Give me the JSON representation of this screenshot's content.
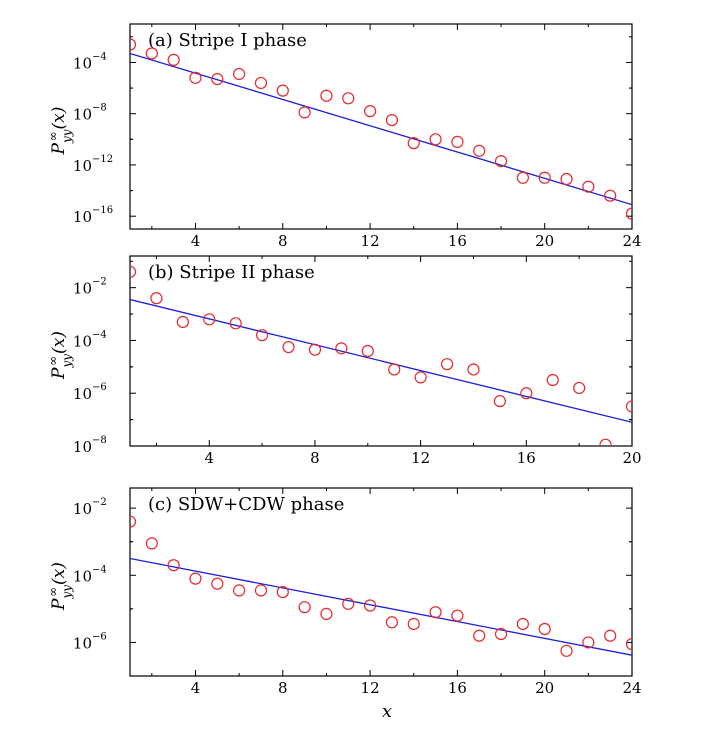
{
  "chart_data": [
    {
      "type": "scatter",
      "title": "(a) Stripe I phase",
      "ylabel": "P_yy^∞(x)",
      "xlabel": "",
      "yscale": "log",
      "xlim": [
        1,
        24
      ],
      "ylim_exp": [
        -17,
        -1
      ],
      "x_ticks": [
        4,
        8,
        12,
        16,
        20,
        24
      ],
      "y_tick_exps": [
        -4,
        -8,
        -12,
        -16
      ],
      "series": [
        {
          "marker": "open-circle",
          "color": "#e8262b",
          "x": [
            1,
            2,
            3,
            4,
            5,
            6,
            7,
            8,
            9,
            10,
            11,
            12,
            13,
            14,
            15,
            16,
            17,
            18,
            19,
            20,
            21,
            22,
            23,
            24
          ],
          "log10_y": [
            -2.6,
            -3.3,
            -3.8,
            -5.2,
            -5.3,
            -4.9,
            -5.6,
            -6.2,
            -7.9,
            -6.6,
            -6.8,
            -7.8,
            -8.5,
            -10.3,
            -10.0,
            -10.2,
            -10.9,
            -11.7,
            -13.0,
            -13.0,
            -13.1,
            -13.7,
            -14.4,
            -15.8
          ]
        }
      ],
      "fit_line": {
        "color": "#1f1fd6",
        "x": [
          1,
          24
        ],
        "log10_y": [
          -3.3,
          -15.1
        ]
      }
    },
    {
      "type": "scatter",
      "title": "(b) Stripe II phase",
      "ylabel": "P_yy^∞(x)",
      "xlabel": "",
      "yscale": "log",
      "xlim": [
        1,
        20
      ],
      "ylim_exp": [
        -8,
        -0.8
      ],
      "x_ticks": [
        4,
        8,
        12,
        16,
        20
      ],
      "y_tick_exps": [
        -2,
        -4,
        -6,
        -8
      ],
      "series": [
        {
          "marker": "open-circle",
          "color": "#e8262b",
          "x": [
            1,
            2,
            3,
            4,
            5,
            6,
            7,
            8,
            9,
            10,
            11,
            12,
            13,
            14,
            15,
            16,
            17,
            18,
            19,
            20
          ],
          "log10_y": [
            -1.4,
            -2.4,
            -3.3,
            -3.2,
            -3.35,
            -3.8,
            -4.25,
            -4.35,
            -4.3,
            -4.4,
            -5.1,
            -5.4,
            -4.9,
            -5.1,
            -6.3,
            -6.0,
            -5.5,
            -5.8,
            -7.95,
            -6.5
          ]
        }
      ],
      "fit_line": {
        "color": "#1f1fd6",
        "x": [
          1,
          20
        ],
        "log10_y": [
          -2.45,
          -7.1
        ]
      }
    },
    {
      "type": "scatter",
      "title": "(c) SDW+CDW phase",
      "ylabel": "P_yy^∞(x)",
      "xlabel": "x",
      "yscale": "log",
      "xlim": [
        1,
        24
      ],
      "ylim_exp": [
        -7,
        -1.4
      ],
      "x_ticks": [
        4,
        8,
        12,
        16,
        20,
        24
      ],
      "y_tick_exps": [
        -2,
        -4,
        -6
      ],
      "series": [
        {
          "marker": "open-circle",
          "color": "#e8262b",
          "x": [
            1,
            2,
            3,
            4,
            5,
            6,
            7,
            8,
            9,
            10,
            11,
            12,
            13,
            14,
            15,
            16,
            17,
            18,
            19,
            20,
            21,
            22,
            23,
            24
          ],
          "log10_y": [
            -2.4,
            -3.05,
            -3.7,
            -4.1,
            -4.25,
            -4.45,
            -4.45,
            -4.5,
            -4.95,
            -5.15,
            -4.85,
            -4.9,
            -5.4,
            -5.45,
            -5.1,
            -5.2,
            -5.8,
            -5.75,
            -5.45,
            -5.6,
            -6.25,
            -6.0,
            -5.8,
            -6.05
          ]
        }
      ],
      "fit_line": {
        "color": "#1f1fd6",
        "x": [
          1,
          24
        ],
        "log10_y": [
          -3.5,
          -6.38
        ]
      }
    }
  ]
}
